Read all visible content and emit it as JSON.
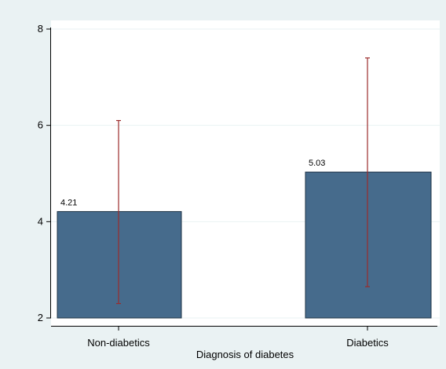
{
  "chart_data": {
    "type": "bar",
    "categories": [
      "Non-diabetics",
      "Diabetics"
    ],
    "values": [
      4.21,
      5.03
    ],
    "data_labels": [
      "4.21",
      "5.03"
    ],
    "error_bars": [
      {
        "low": 2.3,
        "high": 6.1
      },
      {
        "low": 2.65,
        "high": 7.4
      }
    ],
    "xlabel": "Diagnosis of diabetes",
    "ylabel": "",
    "ylim": [
      2,
      8
    ],
    "yticks": [
      2,
      4,
      6,
      8
    ],
    "ytick_labels": [
      "2",
      "4",
      "6",
      "8"
    ],
    "grid": true,
    "colors": {
      "background": "#eaf2f3",
      "plot_area": "#ffffff",
      "bar": "#466b8c",
      "bar_edge": "#1f3346",
      "error_bar": "#9b2b2b",
      "grid": "#eaf2f3"
    }
  }
}
